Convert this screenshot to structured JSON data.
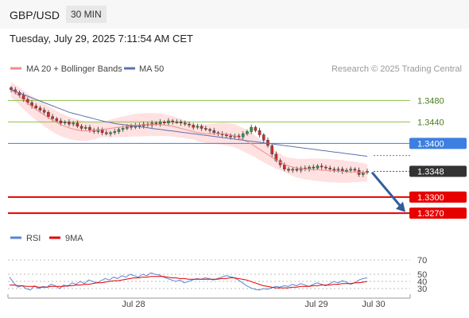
{
  "header": {
    "pair": "GBP/USD",
    "timeframe": "30 MIN",
    "datetime": "Tuesday, July 29, 2025 7:11:54 AM CET"
  },
  "legend": {
    "ma20": "MA 20 + Bollinger Bands",
    "ma50": "MA 50",
    "credit": "Research © 2025 Trading Central",
    "rsi": "RSI",
    "rsi_ma": "9MA"
  },
  "colors": {
    "bollinger_band": "#ffd7d7",
    "ma20": "#f08c8c",
    "ma50": "#5b72b0",
    "resistance": "#8bc34a",
    "pivot": "#3d7fe0",
    "support": "#e60000",
    "price_box": "#333333",
    "arrow": "#2f5e9e",
    "rsi": "#5b86d6",
    "rsi_ma": "#e60000",
    "candle_up": "#2a9d4a",
    "candle_down": "#d22d2d"
  },
  "chart_data": [
    {
      "type": "candlestick",
      "x_labels": [
        "Jul 28",
        "Jul 29",
        "Jul 30"
      ],
      "ylim": [
        1.3245,
        1.3525
      ],
      "levels": [
        {
          "label": "1.3480",
          "value": 1.348,
          "kind": "resistance"
        },
        {
          "label": "1.3440",
          "value": 1.344,
          "kind": "resistance"
        },
        {
          "label": "1.3400",
          "value": 1.34,
          "kind": "pivot"
        },
        {
          "label": "1.3348",
          "value": 1.3348,
          "kind": "last_price"
        },
        {
          "label": "1.3300",
          "value": 1.33,
          "kind": "support"
        },
        {
          "label": "1.3270",
          "value": 1.327,
          "kind": "support"
        }
      ],
      "close_series": [
        1.35,
        1.3495,
        1.349,
        1.3482,
        1.3476,
        1.347,
        1.3466,
        1.3462,
        1.3458,
        1.345,
        1.3446,
        1.3442,
        1.3438,
        1.344,
        1.3436,
        1.3438,
        1.3432,
        1.3428,
        1.343,
        1.3425,
        1.3422,
        1.3426,
        1.342,
        1.3418,
        1.342,
        1.3422,
        1.3426,
        1.3428,
        1.3432,
        1.343,
        1.3434,
        1.3432,
        1.3436,
        1.3434,
        1.3438,
        1.3436,
        1.344,
        1.3438,
        1.3442,
        1.344,
        1.344,
        1.3438,
        1.3436,
        1.3434,
        1.343,
        1.3432,
        1.3428,
        1.3426,
        1.3424,
        1.342,
        1.3418,
        1.3416,
        1.3414,
        1.3412,
        1.3414,
        1.3412,
        1.3418,
        1.3422,
        1.343,
        1.3424,
        1.3416,
        1.3406,
        1.3396,
        1.338,
        1.3368,
        1.336,
        1.3352,
        1.335,
        1.3352,
        1.335,
        1.3354,
        1.3352,
        1.3356,
        1.3354,
        1.3358,
        1.3356,
        1.3354,
        1.3352,
        1.335,
        1.3352,
        1.3348,
        1.335,
        1.3352,
        1.335,
        1.3342,
        1.3346,
        1.3348
      ],
      "ma20": [
        1.35,
        1.3494,
        1.3488,
        1.3481,
        1.3475,
        1.3469,
        1.3463,
        1.3458,
        1.3453,
        1.3448,
        1.3443,
        1.3439,
        1.3435,
        1.3432,
        1.3429,
        1.3427,
        1.3425,
        1.3424,
        1.3423,
        1.3423,
        1.3424,
        1.3425,
        1.3426,
        1.3427,
        1.3428,
        1.3429,
        1.343,
        1.3431,
        1.3432,
        1.3433,
        1.3434,
        1.3434,
        1.3435,
        1.3435,
        1.3435,
        1.3435,
        1.3435,
        1.3434,
        1.3433,
        1.3432,
        1.343,
        1.3428,
        1.3426,
        1.3424,
        1.3422,
        1.342,
        1.3419,
        1.3418,
        1.3418,
        1.3418,
        1.3418,
        1.3418,
        1.3417,
        1.3416,
        1.3414,
        1.3411,
        1.3407,
        1.3403,
        1.3399,
        1.3394,
        1.3389,
        1.3384,
        1.3379,
        1.3374,
        1.3369,
        1.3365,
        1.3361,
        1.3358,
        1.3356,
        1.3354,
        1.3353,
        1.3352,
        1.3352,
        1.3351,
        1.3351,
        1.335,
        1.335,
        1.3349,
        1.3349,
        1.3348,
        1.3348,
        1.3347,
        1.3347,
        1.3347,
        1.3346,
        1.3346,
        1.3345
      ],
      "ma50": [
        1.35,
        1.3497,
        1.3494,
        1.3491,
        1.3488,
        1.3485,
        1.3482,
        1.3479,
        1.3476,
        1.3473,
        1.347,
        1.3467,
        1.3464,
        1.3461,
        1.3458,
        1.3456,
        1.3454,
        1.3452,
        1.345,
        1.3448,
        1.3446,
        1.3444,
        1.3442,
        1.344,
        1.3439,
        1.3437,
        1.3436,
        1.3435,
        1.3434,
        1.3433,
        1.3432,
        1.3431,
        1.343,
        1.3429,
        1.3428,
        1.3427,
        1.3426,
        1.3425,
        1.3424,
        1.3423,
        1.3422,
        1.3421,
        1.342,
        1.3419,
        1.3418,
        1.3417,
        1.3416,
        1.3415,
        1.3414,
        1.3413,
        1.3412,
        1.3411,
        1.341,
        1.3409,
        1.3408,
        1.3407,
        1.3406,
        1.3405,
        1.3404,
        1.3403,
        1.3402,
        1.3401,
        1.34,
        1.3399,
        1.3398,
        1.3397,
        1.3396,
        1.3395,
        1.3394,
        1.3393,
        1.3392,
        1.3391,
        1.339,
        1.3389,
        1.3388,
        1.3387,
        1.3386,
        1.3385,
        1.3384,
        1.3383,
        1.3382,
        1.3381,
        1.338,
        1.3379,
        1.3378,
        1.3377,
        1.3376
      ],
      "bb_width": 0.0018,
      "projection": {
        "from": 1.3346,
        "to": 1.3272
      }
    },
    {
      "type": "line",
      "ylim": [
        20,
        80
      ],
      "y_ticks": [
        {
          "label": "70",
          "value": 70
        },
        {
          "label": "50",
          "value": 50
        },
        {
          "label": "40",
          "value": 40
        },
        {
          "label": "30",
          "value": 30
        }
      ],
      "rsi": [
        46,
        38,
        32,
        34,
        30,
        28,
        34,
        30,
        33,
        32,
        36,
        34,
        30,
        35,
        33,
        38,
        36,
        40,
        37,
        42,
        40,
        38,
        41,
        44,
        42,
        46,
        44,
        48,
        46,
        50,
        48,
        46,
        50,
        48,
        52,
        50,
        49,
        46,
        44,
        42,
        40,
        42,
        38,
        40,
        42,
        44,
        43,
        45,
        44,
        42,
        44,
        46,
        48,
        47,
        45,
        42,
        38,
        34,
        31,
        29,
        28,
        30,
        29,
        31,
        33,
        32,
        34,
        33,
        36,
        34,
        37,
        35,
        33,
        36,
        38,
        36,
        34,
        37,
        40,
        38,
        41,
        39,
        36,
        38,
        42,
        44,
        45
      ],
      "rsi_ma": [
        35,
        35,
        34,
        34,
        33,
        33,
        33,
        32,
        32,
        32,
        33,
        33,
        33,
        33,
        34,
        34,
        35,
        35,
        36,
        36,
        37,
        38,
        38,
        39,
        40,
        41,
        41,
        42,
        43,
        44,
        45,
        45,
        46,
        46,
        47,
        47,
        47,
        47,
        46,
        45,
        45,
        44,
        44,
        43,
        43,
        43,
        43,
        43,
        43,
        43,
        43,
        44,
        44,
        45,
        45,
        44,
        43,
        42,
        40,
        38,
        36,
        34,
        33,
        32,
        31,
        31,
        31,
        31,
        32,
        32,
        33,
        33,
        33,
        34,
        34,
        35,
        35,
        35,
        36,
        36,
        37,
        37,
        37,
        38,
        38,
        39,
        40
      ]
    }
  ]
}
